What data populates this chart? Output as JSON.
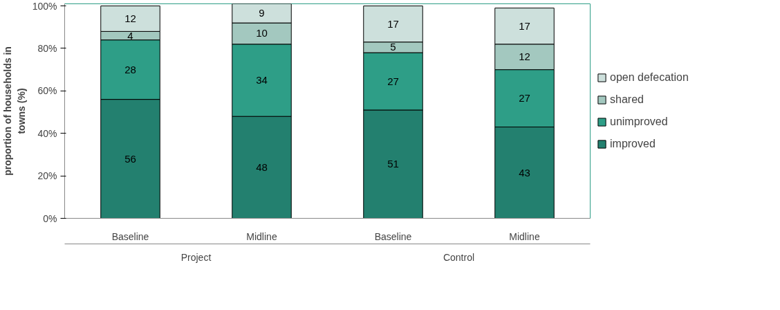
{
  "chart_data": {
    "type": "bar",
    "stacked": true,
    "categories": [
      "Baseline",
      "Midline",
      "Baseline",
      "Midline"
    ],
    "ylabel": "proportion of households in\ntowns (%)",
    "annotations": [
      "Project",
      "Control"
    ],
    "series": [
      {
        "name": "improved",
        "color": "#23806f",
        "values": [
          56,
          48,
          51,
          43
        ]
      },
      {
        "name": "unimproved",
        "color": "#2e9e87",
        "values": [
          28,
          34,
          27,
          27
        ]
      },
      {
        "name": "shared",
        "color": "#a3c8bf",
        "values": [
          4,
          10,
          5,
          12
        ]
      },
      {
        "name": "open defecation",
        "color": "#cde0dc",
        "values": [
          12,
          9,
          17,
          17
        ]
      }
    ],
    "ylim": [
      0,
      101
    ],
    "yticks": [
      {
        "value": 0,
        "label": "0%"
      },
      {
        "value": 20,
        "label": "20%"
      },
      {
        "value": 40,
        "label": "40%"
      },
      {
        "value": 60,
        "label": "60%"
      },
      {
        "value": 80,
        "label": "80%"
      },
      {
        "value": 100,
        "label": "100%"
      }
    ],
    "data_labels": true,
    "legend": "right",
    "grid": false
  }
}
